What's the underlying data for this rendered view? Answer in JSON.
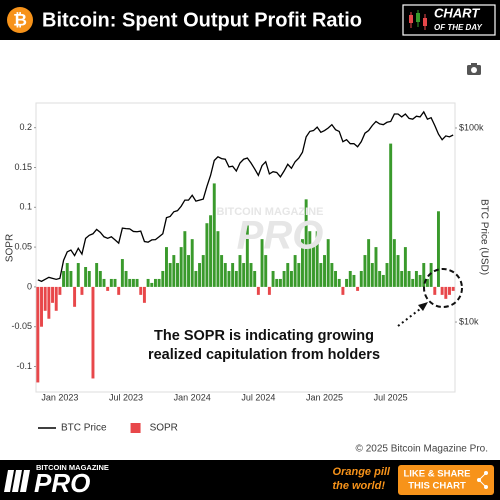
{
  "header": {
    "title": "Bitcoin: Spent Output Profit Ratio",
    "badge": [
      "CHART",
      "OF THE DAY"
    ]
  },
  "chart_data": {
    "type": "combo",
    "y_label": "SOPR",
    "y2_label": "BTC Price (USD)",
    "categories": [
      null,
      null,
      null,
      null,
      null,
      null,
      "Jan 2023",
      null,
      null,
      null,
      null,
      null,
      null,
      null,
      null,
      null,
      null,
      null,
      null,
      null,
      null,
      null,
      null,
      null,
      "Jul 2023",
      null,
      null,
      null,
      null,
      null,
      null,
      null,
      null,
      null,
      null,
      null,
      null,
      null,
      null,
      null,
      null,
      null,
      "Jan 2024",
      null,
      null,
      null,
      null,
      null,
      null,
      null,
      null,
      null,
      null,
      null,
      null,
      null,
      null,
      null,
      null,
      null,
      "Jul 2024",
      null,
      null,
      null,
      null,
      null,
      null,
      null,
      null,
      null,
      null,
      null,
      null,
      null,
      null,
      null,
      null,
      null,
      "Jan 2025",
      null,
      null,
      null,
      null,
      null,
      null,
      null,
      null,
      null,
      null,
      null,
      null,
      null,
      null,
      null,
      null,
      null,
      "Jul 2025",
      null,
      null,
      null,
      null,
      null,
      null,
      null,
      null,
      null,
      null,
      null,
      null,
      null,
      null,
      null,
      null,
      null
    ],
    "series": [
      {
        "name": "BTC Price",
        "type": "line",
        "axis": "y2",
        "color": "#000000",
        "values": [
          16500,
          16200,
          16600,
          17000,
          16800,
          16600,
          16800,
          20800,
          23000,
          23500,
          22000,
          24000,
          22400,
          27000,
          28000,
          28500,
          30000,
          29000,
          27500,
          27000,
          27500,
          26500,
          25500,
          30500,
          30300,
          30200,
          29300,
          29200,
          29400,
          26000,
          25800,
          26500,
          26600,
          27500,
          28500,
          34500,
          35000,
          37000,
          37500,
          39500,
          42500,
          42500,
          45000,
          42000,
          42500,
          43000,
          50000,
          57000,
          68000,
          71000,
          69500,
          69000,
          63000,
          63500,
          60000,
          66000,
          69000,
          70000,
          66000,
          61500,
          57000,
          64000,
          67000,
          58000,
          59500,
          59000,
          56000,
          60000,
          65000,
          62000,
          67000,
          70000,
          75000,
          90000,
          96000,
          97000,
          101000,
          95000,
          97000,
          100000,
          104000,
          98000,
          96000,
          85000,
          87000,
          83000,
          83000,
          80000,
          85000,
          94000,
          97000,
          103000,
          108000,
          105000,
          104000,
          107000,
          108000,
          118000,
          118000,
          114000,
          118000,
          112000,
          111000,
          115000,
          114000,
          121000,
          111000,
          113000,
          103000,
          93000,
          87000,
          91000,
          90000,
          92000
        ]
      },
      {
        "name": "SOPR",
        "type": "bar",
        "color": "#e8474a",
        "positive_color": "#3a9a2c",
        "values": [
          -0.12,
          -0.05,
          -0.03,
          -0.04,
          -0.02,
          -0.03,
          -0.01,
          0.02,
          0.03,
          0.02,
          -0.025,
          0.03,
          -0.01,
          0.025,
          0.02,
          -0.115,
          0.03,
          0.02,
          0.01,
          -0.005,
          0.01,
          0.01,
          -0.01,
          0.035,
          0.02,
          0.01,
          0.01,
          0.01,
          -0.01,
          -0.02,
          0.01,
          0.005,
          0.01,
          0.01,
          0.02,
          0.05,
          0.03,
          0.04,
          0.03,
          0.05,
          0.07,
          0.04,
          0.06,
          0.02,
          0.03,
          0.04,
          0.08,
          0.09,
          0.13,
          0.07,
          0.04,
          0.03,
          0.02,
          0.03,
          0.02,
          0.04,
          0.03,
          0.08,
          0.03,
          0.02,
          -0.01,
          0.06,
          0.04,
          -0.01,
          0.02,
          0.01,
          0.01,
          0.02,
          0.03,
          0.02,
          0.04,
          0.03,
          0.06,
          0.11,
          0.07,
          0.05,
          0.07,
          0.03,
          0.04,
          0.06,
          0.03,
          0.02,
          0.01,
          -0.01,
          0.01,
          0.02,
          0.015,
          -0.005,
          0.02,
          0.04,
          0.06,
          0.03,
          0.05,
          0.02,
          0.015,
          0.03,
          0.18,
          0.06,
          0.04,
          0.02,
          0.05,
          0.02,
          0.01,
          0.02,
          0.015,
          0.03,
          0.01,
          0.03,
          -0.01,
          0.095,
          -0.01,
          -0.015,
          -0.01,
          -0.005
        ]
      }
    ],
    "ylim": [
      -0.132,
      0.231
    ],
    "yticks": [
      -0.1,
      -0.05,
      0,
      0.05,
      0.1,
      0.15,
      0.2
    ],
    "y2lim": [
      4360,
      134500
    ],
    "y2scale": "log",
    "y2ticks": [
      {
        "value": 10000,
        "label": "$10k"
      },
      {
        "value": 100000,
        "label": "$100k"
      }
    ],
    "grid": false,
    "legend": "bottom-left",
    "annotation": [
      "The SOPR is indicating growing",
      "realized capitulation from holders"
    ],
    "watermark": [
      "BITCOIN MAGAZINE",
      "PRO"
    ],
    "copyright": "© 2025 Bitcoin Magazine Pro."
  },
  "footer": {
    "brand": [
      "BITCOIN MAGAZINE",
      "PRO"
    ],
    "slogan": [
      "Orange pill",
      "the world!"
    ],
    "button": [
      "LIKE & SHARE",
      "THIS CHART"
    ]
  }
}
